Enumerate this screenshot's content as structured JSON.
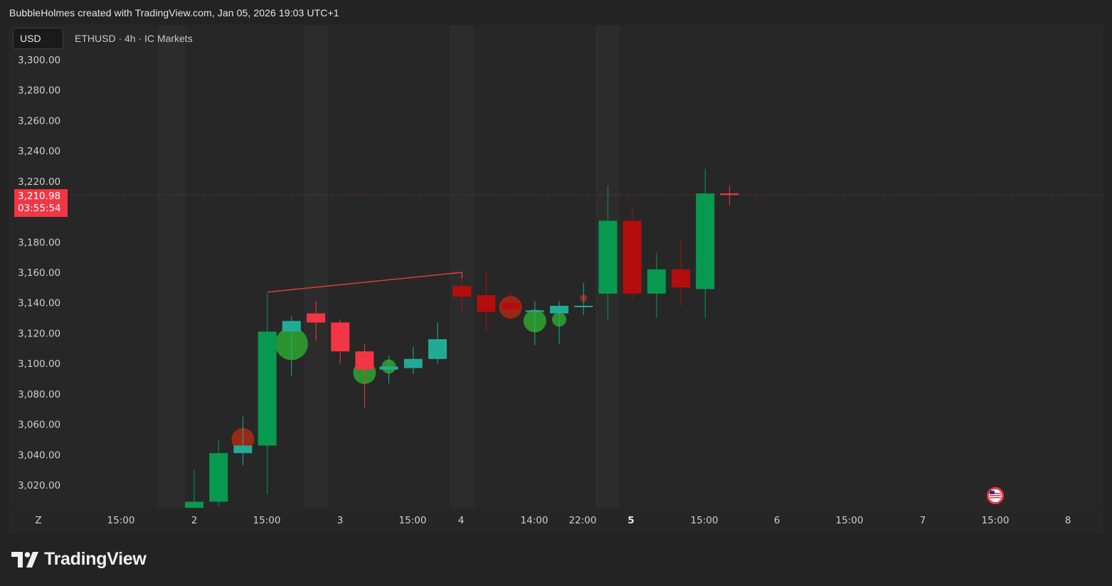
{
  "header": {
    "credit": "BubbleHolmes created with TradingView.com, Jan 05, 2026 19:03 UTC+1"
  },
  "chart_header": {
    "currency": "USD",
    "symbol_info": "ETHUSD · 4h · IC Markets"
  },
  "price_tag": {
    "price": "3,210.98",
    "countdown": "03:55:54"
  },
  "brand": {
    "name": "TradingView"
  },
  "colors": {
    "up": "#089950",
    "down": "#f23645",
    "down_dark": "#b30d0d",
    "teal": "#22ab94",
    "bubble_green": "#2e9f2e",
    "bubble_red": "#a52a14",
    "line_red": "#e03a3e"
  },
  "chart_data": {
    "type": "candlestick",
    "symbol": "ETHUSD",
    "interval": "4h",
    "exchange": "IC Markets",
    "y_axis": {
      "ticks": [
        "3,300.00",
        "3,280.00",
        "3,260.00",
        "3,240.00",
        "3,220.00",
        "3,180.00",
        "3,160.00",
        "3,140.00",
        "3,120.00",
        "3,100.00",
        "3,080.00",
        "3,060.00",
        "3,040.00",
        "3,020.00"
      ],
      "range": [
        3005,
        3310
      ]
    },
    "x_axis": {
      "ticks": [
        "Z",
        "15:00",
        "2",
        "15:00",
        "3",
        "15:00",
        "4",
        "14:00",
        "22:00",
        "5",
        "15:00",
        "6",
        "15:00",
        "7",
        "15:00",
        "8"
      ],
      "bold": [
        "5"
      ]
    },
    "last_price": 3210.98,
    "candles": [
      {
        "o": 3005,
        "h": 3030,
        "l": 3005,
        "c": 3009,
        "color": "up"
      },
      {
        "o": 3009,
        "h": 3050,
        "l": 3006,
        "c": 3041,
        "color": "up"
      },
      {
        "o": 3041,
        "h": 3065,
        "l": 3033,
        "c": 3046,
        "color": "teal"
      },
      {
        "o": 3046,
        "h": 3146,
        "l": 3014,
        "c": 3121,
        "color": "up"
      },
      {
        "o": 3121,
        "h": 3131,
        "l": 3092,
        "c": 3128,
        "color": "teal"
      },
      {
        "o": 3133,
        "h": 3141,
        "l": 3115,
        "c": 3127,
        "color": "down"
      },
      {
        "o": 3127,
        "h": 3129,
        "l": 3100,
        "c": 3108,
        "color": "down"
      },
      {
        "o": 3108,
        "h": 3113,
        "l": 3071,
        "c": 3096,
        "color": "down"
      },
      {
        "o": 3096,
        "h": 3105,
        "l": 3087,
        "c": 3098,
        "color": "teal"
      },
      {
        "o": 3097,
        "h": 3111,
        "l": 3093,
        "c": 3103,
        "color": "teal"
      },
      {
        "o": 3103,
        "h": 3127,
        "l": 3100,
        "c": 3116,
        "color": "teal"
      },
      {
        "o": 3151,
        "h": 3156,
        "l": 3133,
        "c": 3144,
        "color": "down_dark"
      },
      {
        "o": 3145,
        "h": 3160,
        "l": 3121,
        "c": 3134,
        "color": "down_dark"
      },
      {
        "o": 3140,
        "h": 3147,
        "l": 3128,
        "c": 3136,
        "color": "down_dark"
      },
      {
        "o": 3134,
        "h": 3141,
        "l": 3112,
        "c": 3135,
        "color": "teal"
      },
      {
        "o": 3133,
        "h": 3141,
        "l": 3113,
        "c": 3138,
        "color": "teal"
      },
      {
        "o": 3138,
        "h": 3153,
        "l": 3132,
        "c": 3138,
        "color": "teal"
      },
      {
        "o": 3146,
        "h": 3217,
        "l": 3129,
        "c": 3194,
        "color": "up"
      },
      {
        "o": 3194,
        "h": 3202,
        "l": 3142,
        "c": 3146,
        "color": "down_dark"
      },
      {
        "o": 3146,
        "h": 3173,
        "l": 3130,
        "c": 3162,
        "color": "up"
      },
      {
        "o": 3162,
        "h": 3182,
        "l": 3138,
        "c": 3150,
        "color": "down_dark"
      },
      {
        "o": 3149,
        "h": 3228,
        "l": 3130,
        "c": 3212,
        "color": "up"
      },
      {
        "o": 3212,
        "h": 3217,
        "l": 3204,
        "c": 3210.98,
        "color": "down"
      }
    ],
    "bubbles": [
      {
        "index": 2,
        "price": 3050,
        "size": "medium",
        "color": "bubble_red"
      },
      {
        "index": 4,
        "price": 3113,
        "size": "large",
        "color": "bubble_green"
      },
      {
        "index": 7,
        "price": 3094,
        "size": "medium",
        "color": "bubble_green"
      },
      {
        "index": 8,
        "price": 3098,
        "size": "small",
        "color": "bubble_green"
      },
      {
        "index": 13,
        "price": 3137,
        "size": "medium",
        "color": "bubble_red"
      },
      {
        "index": 14,
        "price": 3128,
        "size": "medium",
        "color": "bubble_green"
      },
      {
        "index": 15,
        "price": 3129,
        "size": "small",
        "color": "bubble_green"
      },
      {
        "index": 16,
        "price": 3143,
        "size": "tiny",
        "color": "bubble_red"
      }
    ],
    "trendline": [
      {
        "index": 3,
        "price": 3147
      },
      {
        "index": 11,
        "price": 3160
      }
    ]
  }
}
